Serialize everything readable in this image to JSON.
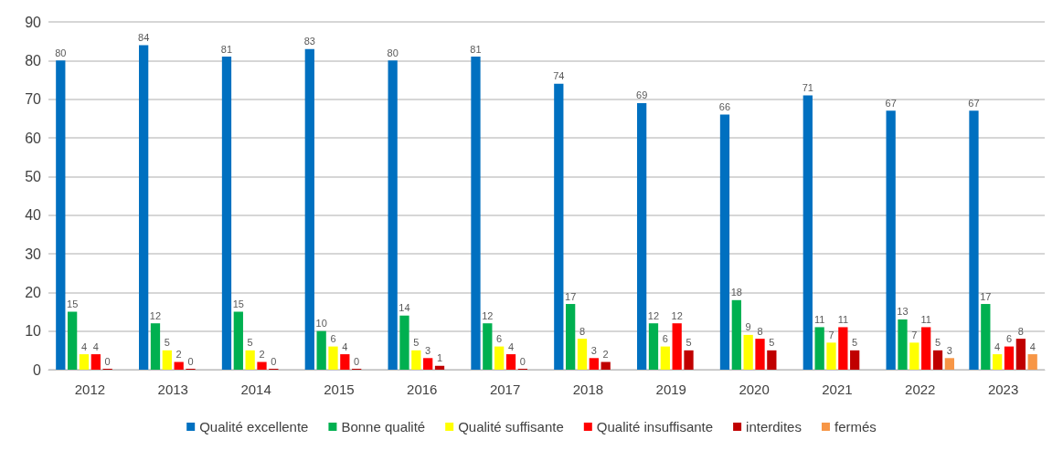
{
  "chart_data": {
    "type": "bar",
    "categories": [
      "2012",
      "2013",
      "2014",
      "2015",
      "2016",
      "2017",
      "2018",
      "2019",
      "2020",
      "2021",
      "2022",
      "2023"
    ],
    "series": [
      {
        "name": "Qualité excellente",
        "color": "#0070c0",
        "values": [
          80,
          84,
          81,
          83,
          80,
          81,
          74,
          69,
          66,
          71,
          67,
          67
        ]
      },
      {
        "name": "Bonne qualité",
        "color": "#00b050",
        "values": [
          15,
          12,
          15,
          10,
          14,
          12,
          17,
          12,
          18,
          11,
          13,
          17
        ]
      },
      {
        "name": "Qualité suffisante",
        "color": "#ffff00",
        "values": [
          4,
          5,
          5,
          6,
          5,
          6,
          8,
          6,
          9,
          7,
          7,
          4
        ]
      },
      {
        "name": "Qualité insuffisante",
        "color": "#ff0000",
        "values": [
          4,
          2,
          2,
          4,
          3,
          4,
          3,
          12,
          8,
          11,
          11,
          6
        ]
      },
      {
        "name": "interdites",
        "color": "#c00000",
        "values": [
          0,
          0,
          0,
          0,
          1,
          0,
          2,
          5,
          5,
          5,
          5,
          8
        ]
      },
      {
        "name": "fermés",
        "color": "#f79646",
        "values": [
          null,
          null,
          null,
          null,
          null,
          null,
          null,
          null,
          null,
          null,
          3,
          4
        ]
      }
    ],
    "ylim": [
      0,
      90
    ],
    "yticks": [
      0,
      10,
      20,
      30,
      40,
      50,
      60,
      70,
      80,
      90
    ],
    "grid": "y",
    "legend": "bottom",
    "data_labels": true
  }
}
